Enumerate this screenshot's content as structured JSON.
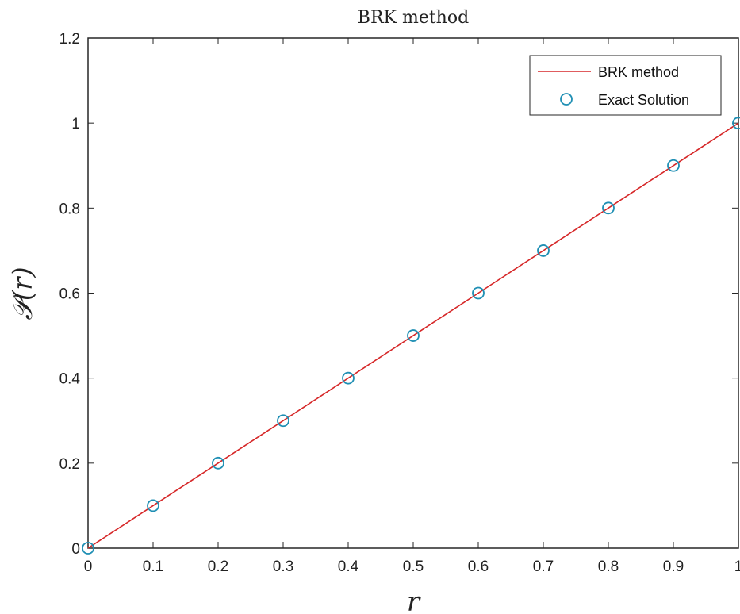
{
  "chart_data": {
    "type": "line",
    "title": "BRK method",
    "xlabel": "r",
    "ylabel": "𝒫(r)",
    "xlim": [
      0,
      1
    ],
    "ylim": [
      0,
      1.2
    ],
    "x_ticks": [
      "0",
      "0.1",
      "0.2",
      "0.3",
      "0.4",
      "0.5",
      "0.6",
      "0.7",
      "0.8",
      "0.9",
      "1"
    ],
    "y_ticks": [
      "0",
      "0.2",
      "0.4",
      "0.6",
      "0.8",
      "1",
      "1.2"
    ],
    "grid": false,
    "legend_position": "top-right",
    "series": [
      {
        "name": "BRK method",
        "style": "line",
        "color": "#d62728",
        "x": [
          0,
          0.1,
          0.2,
          0.3,
          0.4,
          0.5,
          0.6,
          0.7,
          0.8,
          0.9,
          1.0
        ],
        "y": [
          0,
          0.1,
          0.2,
          0.3,
          0.4,
          0.5,
          0.6,
          0.7,
          0.8,
          0.9,
          1.0
        ]
      },
      {
        "name": "Exact Solution",
        "style": "markers",
        "marker": "circle",
        "color": "#1f8fb4",
        "x": [
          0,
          0.1,
          0.2,
          0.3,
          0.4,
          0.5,
          0.6,
          0.7,
          0.8,
          0.9,
          1.0
        ],
        "y": [
          0,
          0.1,
          0.2,
          0.3,
          0.4,
          0.5,
          0.6,
          0.7,
          0.8,
          0.9,
          1.0
        ]
      }
    ]
  }
}
